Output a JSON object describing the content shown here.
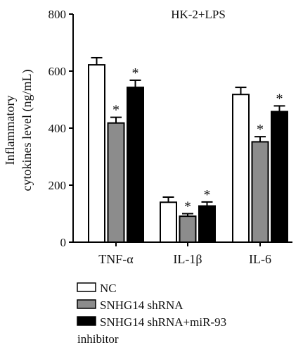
{
  "chart_data": {
    "type": "bar",
    "title": "HK-2+LPS",
    "ylabel_lines": [
      "Inflammatory",
      "cytokines level (ng/mL)"
    ],
    "xlabel": "",
    "ylim": [
      0,
      800
    ],
    "yticks": [
      "0",
      "200",
      "400",
      "600",
      "800"
    ],
    "categories": [
      "TNF-α",
      "IL-1β",
      "IL-6"
    ],
    "series": [
      {
        "name": "NC",
        "values": [
          622,
          140,
          518
        ],
        "errors": [
          25,
          18,
          25
        ],
        "significant": [
          false,
          false,
          false
        ],
        "color": "#ffffff"
      },
      {
        "name": "SNHG14 shRNA",
        "values": [
          418,
          91,
          352
        ],
        "errors": [
          20,
          9,
          18
        ],
        "significant": [
          true,
          true,
          true
        ],
        "color": "#8c8c8c"
      },
      {
        "name": "SNHG14 shRNA+miR-93 inhibitor",
        "values": [
          543,
          127,
          458
        ],
        "errors": [
          25,
          14,
          20
        ],
        "significant": [
          true,
          true,
          true
        ],
        "color": "#000000"
      }
    ],
    "legend_lines": [
      [
        "NC"
      ],
      [
        "SNHG14 shRNA"
      ],
      [
        "SNHG14 shRNA+miR-93",
        "inhibitor"
      ]
    ],
    "significance_marker": "*",
    "grid": false,
    "legend_position": "bottom-left"
  }
}
